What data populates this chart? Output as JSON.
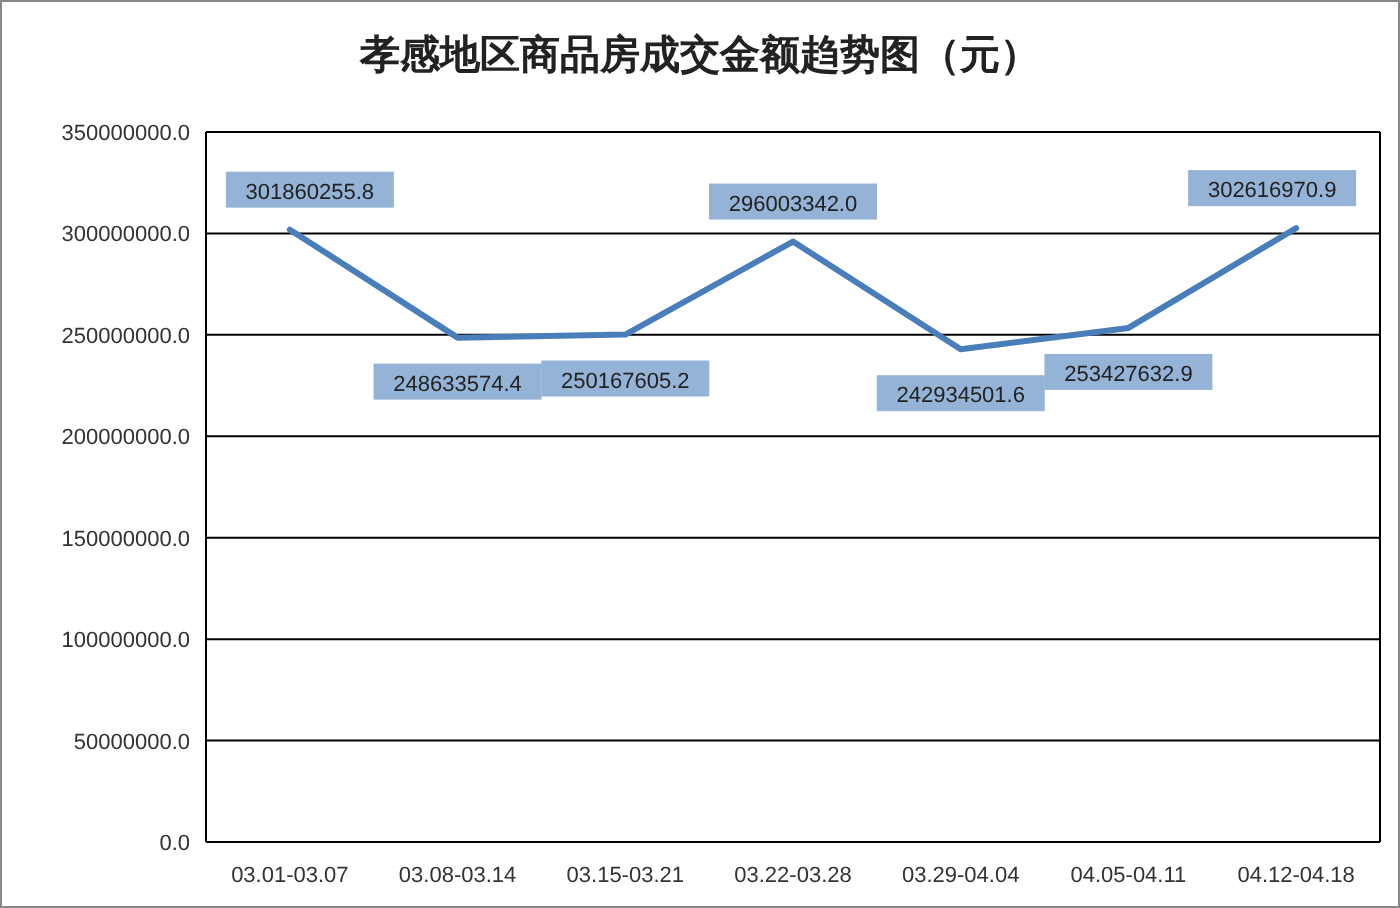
{
  "chart_data": {
    "type": "line",
    "title": "孝感地区商品房成交金额趋势图（元）",
    "categories": [
      "03.01-03.07",
      "03.08-03.14",
      "03.15-03.21",
      "03.22-03.28",
      "03.29-04.04",
      "04.05-04.11",
      "04.12-04.18"
    ],
    "series": [
      {
        "color": "#4a7ebb",
        "values": [
          301860255.8,
          248633574.4,
          250167605.2,
          296003342,
          242934501.6,
          253427632.9,
          302616970.9
        ],
        "value_labels": [
          "301860255.8",
          "248633574.4",
          "250167605.2",
          "296003342.0",
          "242934501.6",
          "253427632.9",
          "302616970.9"
        ]
      }
    ],
    "ylim": [
      0,
      350000000
    ],
    "yticks": [
      {
        "value": 0,
        "label": "0.0"
      },
      {
        "value": 50000000,
        "label": "50000000.0"
      },
      {
        "value": 100000000,
        "label": "100000000.0"
      },
      {
        "value": 150000000,
        "label": "150000000.0"
      },
      {
        "value": 200000000,
        "label": "200000000.0"
      },
      {
        "value": 250000000,
        "label": "250000000.0"
      },
      {
        "value": 300000000,
        "label": "300000000.0"
      },
      {
        "value": 350000000,
        "label": "350000000.0"
      }
    ],
    "grid": "y",
    "marker": "none",
    "line_style": "solid"
  }
}
